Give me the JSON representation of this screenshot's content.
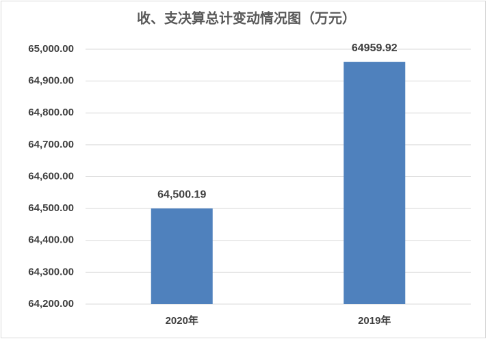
{
  "chart_data": {
    "type": "bar",
    "title": "收、支决算总计变动情况图（万元）",
    "categories": [
      "2020年",
      "2019年"
    ],
    "values": [
      64500.19,
      64959.92
    ],
    "value_labels": [
      "64,500.19",
      "64959.92"
    ],
    "color": "#4f81bd",
    "ylim": [
      64200,
      65000
    ],
    "yticks": [
      {
        "value": 64200,
        "label": "64,200.00"
      },
      {
        "value": 64300,
        "label": "64,300.00"
      },
      {
        "value": 64400,
        "label": "64,400.00"
      },
      {
        "value": 64500,
        "label": "64,500.00"
      },
      {
        "value": 64600,
        "label": "64,600.00"
      },
      {
        "value": 64700,
        "label": "64,700.00"
      },
      {
        "value": 64800,
        "label": "64,800.00"
      },
      {
        "value": 64900,
        "label": "64,900.00"
      },
      {
        "value": 65000,
        "label": "65,000.00"
      }
    ],
    "grid": true
  }
}
